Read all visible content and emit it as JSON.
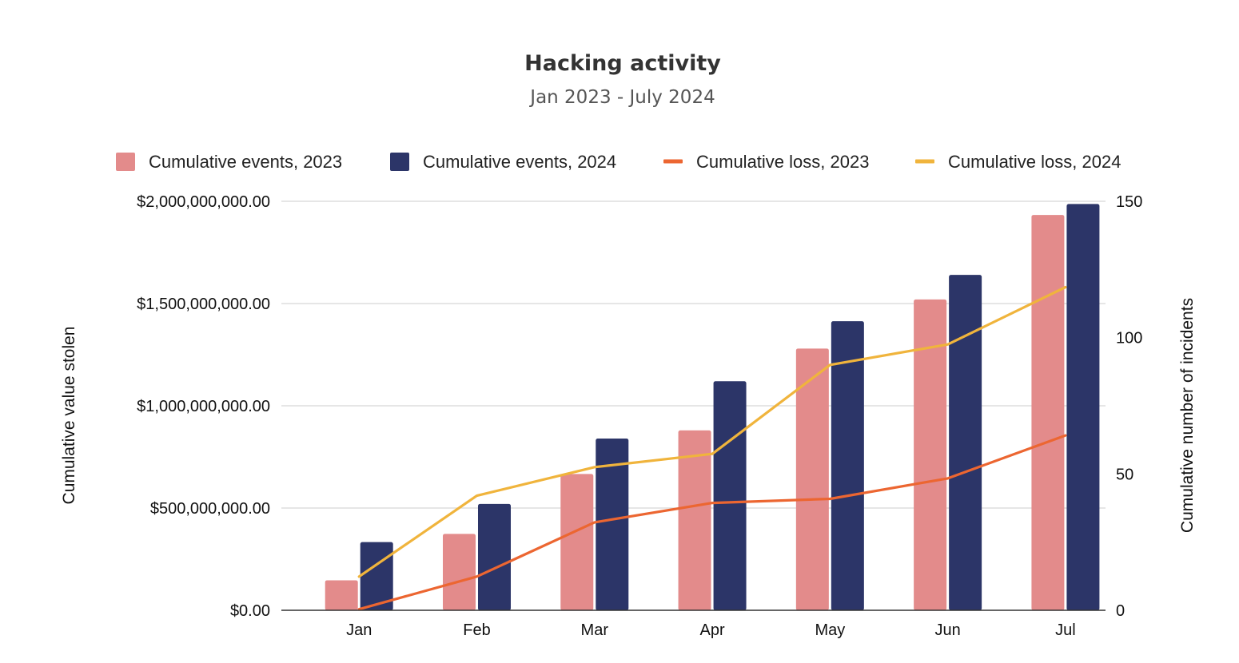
{
  "chart_data": {
    "type": "bar",
    "title": "Hacking activity",
    "subtitle": "Jan 2023 - July 2024",
    "categories": [
      "Jan",
      "Feb",
      "Mar",
      "Apr",
      "May",
      "Jun",
      "Jul"
    ],
    "ylabel_left": "Cumulative value stolen",
    "ylabel_right": "Cumulative number of incidents",
    "y_left_ticks": [
      "$0.00",
      "$500,000,000.00",
      "$1,000,000,000.00",
      "$1,500,000,000.00",
      "$2,000,000,000.00"
    ],
    "y_right_ticks": [
      "0",
      "50",
      "100",
      "150"
    ],
    "ylim_left": [
      0,
      2000000000
    ],
    "ylim_right": [
      0,
      150
    ],
    "legend_position": "top",
    "grid": true,
    "series": [
      {
        "name": "Cumulative events, 2023",
        "kind": "bar",
        "axis": "right",
        "color": "#e38b8b",
        "values": [
          11,
          28,
          50,
          66,
          96,
          114,
          145
        ]
      },
      {
        "name": "Cumulative events, 2024",
        "kind": "bar",
        "axis": "right",
        "color": "#2c3568",
        "values": [
          25,
          39,
          63,
          84,
          106,
          123,
          149
        ]
      },
      {
        "name": "Cumulative loss, 2023",
        "kind": "line",
        "axis": "left",
        "color": "#ec6631",
        "values": [
          5000000,
          165000000,
          430000000,
          525000000,
          545000000,
          645000000,
          855000000
        ]
      },
      {
        "name": "Cumulative loss, 2024",
        "kind": "line",
        "axis": "left",
        "color": "#f0b43c",
        "values": [
          165000000,
          560000000,
          700000000,
          765000000,
          1200000000,
          1300000000,
          1580000000
        ]
      }
    ]
  }
}
